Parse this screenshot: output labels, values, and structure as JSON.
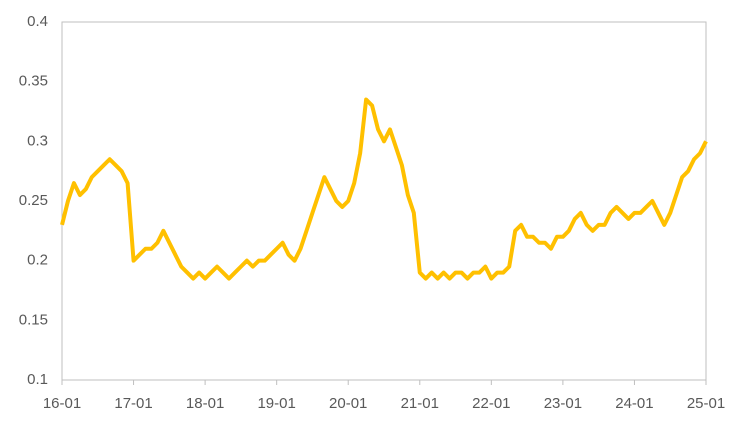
{
  "chart_data": {
    "type": "line",
    "color": "#ffc000",
    "categories": [
      "16-01",
      null,
      null,
      null,
      null,
      null,
      null,
      null,
      null,
      null,
      null,
      null,
      "17-01",
      null,
      null,
      null,
      null,
      null,
      null,
      null,
      null,
      null,
      null,
      null,
      "18-01",
      null,
      null,
      null,
      null,
      null,
      null,
      null,
      null,
      null,
      null,
      null,
      "19-01",
      null,
      null,
      null,
      null,
      null,
      null,
      null,
      null,
      null,
      null,
      null,
      "20-01",
      null,
      null,
      null,
      null,
      null,
      null,
      null,
      null,
      null,
      null,
      null,
      "21-01",
      null,
      null,
      null,
      null,
      null,
      null,
      null,
      null,
      null,
      null,
      null,
      "22-01",
      null,
      null,
      null,
      null,
      null,
      null,
      null,
      null,
      null,
      null,
      null,
      "23-01",
      null,
      null,
      null,
      null,
      null,
      null,
      null,
      null,
      null,
      null,
      null,
      "24-01",
      null,
      null,
      null,
      null,
      null,
      null,
      null,
      null,
      null,
      null,
      null,
      "25-01"
    ],
    "values": [
      0.23,
      0.25,
      0.265,
      0.255,
      0.26,
      0.27,
      0.275,
      0.28,
      0.285,
      0.28,
      0.275,
      0.265,
      0.2,
      0.205,
      0.21,
      0.21,
      0.215,
      0.225,
      0.215,
      0.205,
      0.195,
      0.19,
      0.185,
      0.19,
      0.185,
      0.19,
      0.195,
      0.19,
      0.185,
      0.19,
      0.195,
      0.2,
      0.195,
      0.2,
      0.2,
      0.205,
      0.21,
      0.215,
      0.205,
      0.2,
      0.21,
      0.225,
      0.24,
      0.255,
      0.27,
      0.26,
      0.25,
      0.245,
      0.25,
      0.265,
      0.29,
      0.335,
      0.33,
      0.31,
      0.3,
      0.31,
      0.295,
      0.28,
      0.255,
      0.24,
      0.19,
      0.185,
      0.19,
      0.185,
      0.19,
      0.185,
      0.19,
      0.19,
      0.185,
      0.19,
      0.19,
      0.195,
      0.185,
      0.19,
      0.19,
      0.195,
      0.225,
      0.23,
      0.22,
      0.22,
      0.215,
      0.215,
      0.21,
      0.22,
      0.22,
      0.225,
      0.235,
      0.24,
      0.23,
      0.225,
      0.23,
      0.23,
      0.24,
      0.245,
      0.24,
      0.235,
      0.24,
      0.24,
      0.245,
      0.25,
      0.24,
      0.23,
      0.24,
      0.255,
      0.27,
      0.275,
      0.285,
      0.29,
      0.3
    ],
    "ylim": [
      0.1,
      0.4
    ],
    "yticks": [
      0.1,
      0.15,
      0.2,
      0.25,
      0.3,
      0.35,
      0.4
    ],
    "grid": false
  }
}
